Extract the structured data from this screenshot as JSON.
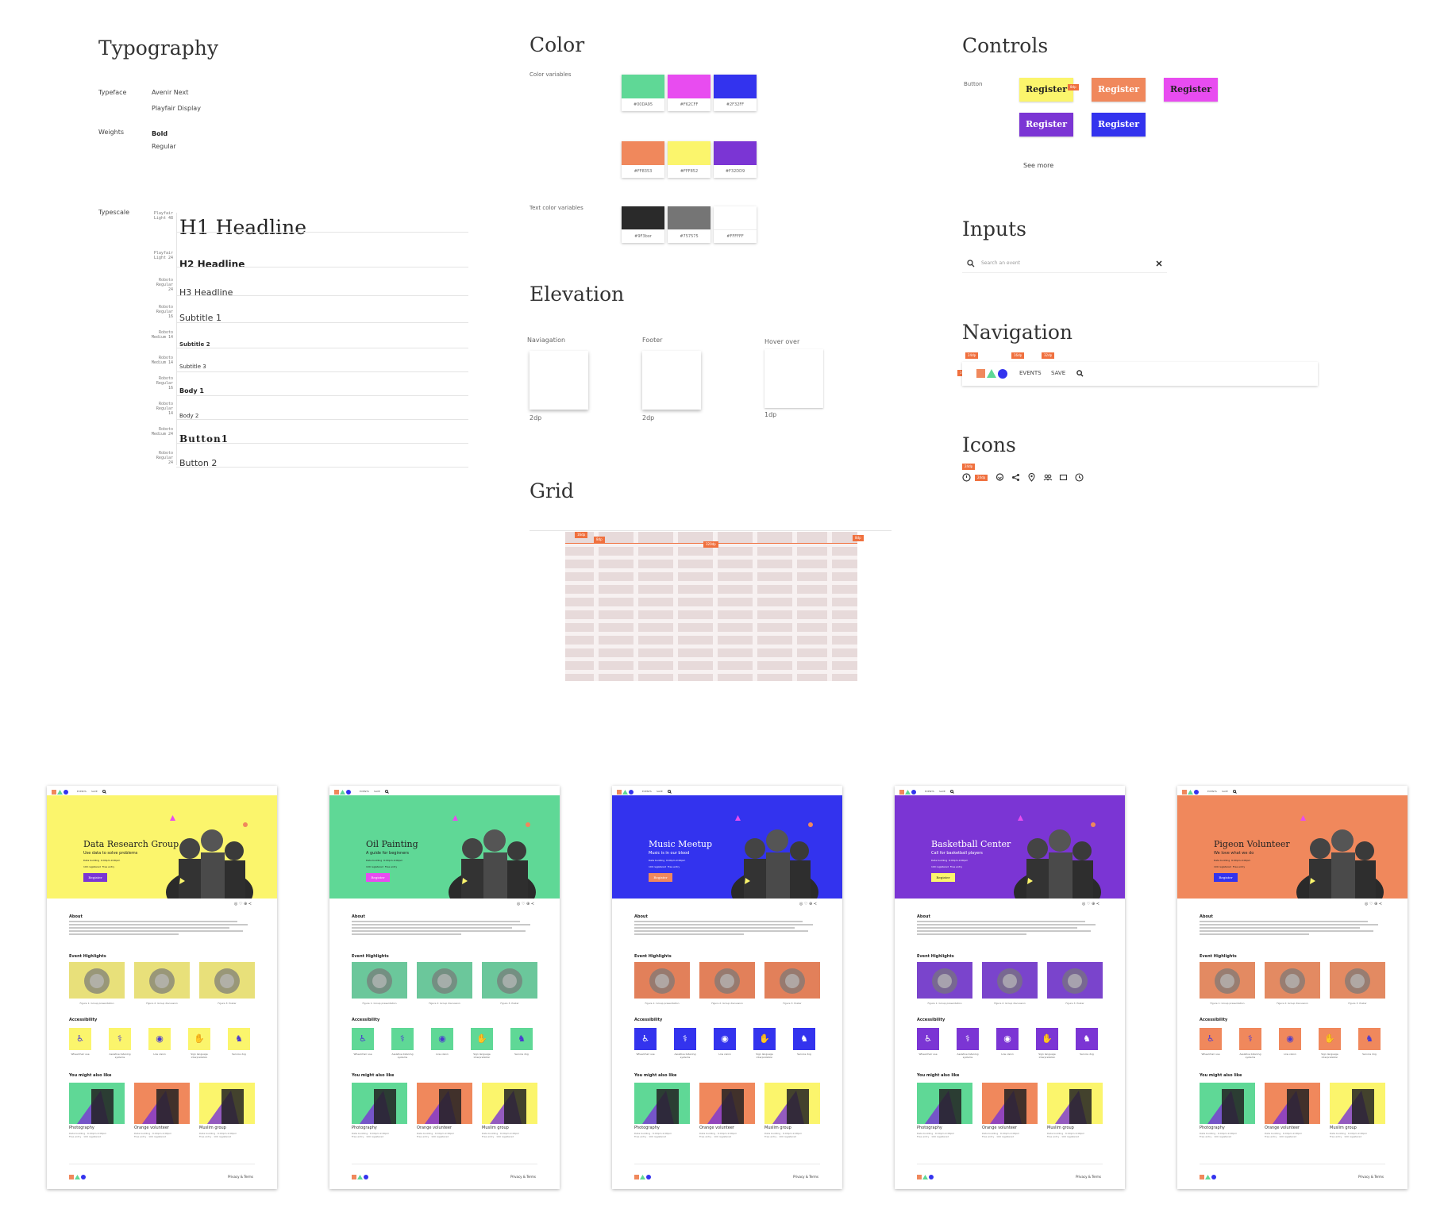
{
  "sections": {
    "typography": "Typography",
    "color": "Color",
    "controls": "Controls",
    "inputs": "Inputs",
    "navigation": "Navigation",
    "icons": "Icons",
    "elevation": "Elevation",
    "grid": "Grid"
  },
  "typography": {
    "typeface_label": "Typeface",
    "typefaces": [
      "Avenir Next",
      "Playfair Display"
    ],
    "weights_label": "Weights",
    "weights": [
      "Bold",
      "Regular"
    ],
    "typescale_label": "Typescale",
    "scale": [
      {
        "meta": "Playfair Light 48",
        "text": "H1 Headline"
      },
      {
        "meta": "Playfair Light 24",
        "text": "H2 Headline"
      },
      {
        "meta": "Roboto Regular 24",
        "text": "H3 Headline"
      },
      {
        "meta": "Roboto Regular 16",
        "text": "Subtitle 1"
      },
      {
        "meta": "Roboto Medium 14",
        "text": "Subtitle 2"
      },
      {
        "meta": "Roboto Medium 14",
        "text": "Subtitle 3"
      },
      {
        "meta": "Roboto Regular 16",
        "text": "Body 1"
      },
      {
        "meta": "Roboto Regular 14",
        "text": "Body 2"
      },
      {
        "meta": "Roboto Medium 24",
        "text": "Button1"
      },
      {
        "meta": "Roboto Regular 24",
        "text": "Button 2"
      }
    ]
  },
  "color": {
    "vars_label": "Color variables",
    "text_vars_label": "Text color variables",
    "swatches": [
      {
        "hex": "#00DA95",
        "color": "#5fd896"
      },
      {
        "hex": "#F62CFF",
        "color": "#e84cf0"
      },
      {
        "hex": "#2F32FF",
        "color": "#3333ee"
      },
      {
        "hex": "#FF8353",
        "color": "#f0885c"
      },
      {
        "hex": "#FFF852",
        "color": "#fbf56c"
      },
      {
        "hex": "#F32DD9",
        "color": "#7b35d4"
      }
    ],
    "text_swatches": [
      {
        "hex": "#9F3bor",
        "color": "#2a2a2a"
      },
      {
        "hex": "#757575",
        "color": "#757575"
      },
      {
        "hex": "#FFFFFF",
        "color": "#ffffff"
      }
    ]
  },
  "controls": {
    "button_label": "Button",
    "see_more": "See more",
    "buttons": [
      {
        "label": "Register",
        "bg": "#fbf56c",
        "fg": "#222222"
      },
      {
        "label": "Register",
        "bg": "#f0885c",
        "fg": "#ffffff"
      },
      {
        "label": "Register",
        "bg": "#e84cf0",
        "fg": "#222222"
      },
      {
        "label": "Register",
        "bg": "#7b35d4",
        "fg": "#ffffff"
      },
      {
        "label": "Register",
        "bg": "#3333ee",
        "fg": "#ffffff"
      }
    ],
    "tag": "8dp"
  },
  "inputs": {
    "search_placeholder": "Search an event"
  },
  "navigation": {
    "items": [
      "EVENTS",
      "SAVE"
    ],
    "tags": [
      "24dp",
      "16dp",
      "32dp",
      "16dp"
    ]
  },
  "icons": {
    "tags": [
      "24dp",
      "24dp"
    ],
    "names": [
      "clock-alert-icon",
      "heart-icon",
      "share-icon",
      "location-icon",
      "group-icon",
      "ticket-icon",
      "time-icon"
    ]
  },
  "elevation": {
    "items": [
      {
        "label": "Naviagation",
        "dp": "2dp"
      },
      {
        "label": "Footer",
        "dp": "2dp"
      },
      {
        "label": "Hover over",
        "dp": "1dp"
      }
    ]
  },
  "grid": {
    "tags": [
      "16dp",
      "8dp",
      "320dp",
      "8dp"
    ]
  },
  "screens": [
    {
      "title": "Data Research Group",
      "subtitle": "Use data to solve problems",
      "color": "#fbf56c",
      "btn": "#7b35d4",
      "btn_fg": "#ffffff",
      "thumb_bg": "#e8e07a"
    },
    {
      "title": "Oil Painting",
      "subtitle": "A guide for beginners",
      "color": "#5fd896",
      "btn": "#e84cf0",
      "btn_fg": "#ffffff",
      "thumb_bg": "#6bc79b"
    },
    {
      "title": "Music Meetup",
      "subtitle": "Music is in our blood",
      "color": "#3333ee",
      "btn": "#f0885c",
      "btn_fg": "#ffffff",
      "thumb_bg": "#e2805a"
    },
    {
      "title": "Basketball Center",
      "subtitle": "Call for basketball players",
      "color": "#7b35d4",
      "btn": "#fbf56c",
      "btn_fg": "#222222",
      "thumb_bg": "#7a44cc"
    },
    {
      "title": "Pigeon Volunteer",
      "subtitle": "We love what we do",
      "color": "#f0885c",
      "btn": "#3333ee",
      "btn_fg": "#ffffff",
      "thumb_bg": "#e38a62"
    }
  ],
  "screen_common": {
    "register": "Register",
    "about": "About",
    "highlights": "Event Highlights",
    "accessibility": "Accessibility",
    "also_like": "You might also like",
    "privacy": "Privacy & Terms",
    "nav_events": "EVENTS",
    "nav_save": "SAVE",
    "captions": [
      "Figure 1: Group presentation",
      "Figure 2: Group discussion",
      "Figure 3: Poster"
    ],
    "acc_labels": [
      "Wheelchair use",
      "Assistive listening systems",
      "Low vision",
      "Sign language interpretation",
      "Service dog"
    ],
    "cards": [
      {
        "title": "Photography",
        "bg": "#5fd896"
      },
      {
        "title": "Orange volunteer",
        "bg": "#f0885c"
      },
      {
        "title": "Muslim group",
        "bg": "#fbf56c"
      }
    ],
    "meta_lines": [
      "Data building",
      "6:00pm-9:00pm",
      "Free entry",
      "100 registered"
    ]
  }
}
